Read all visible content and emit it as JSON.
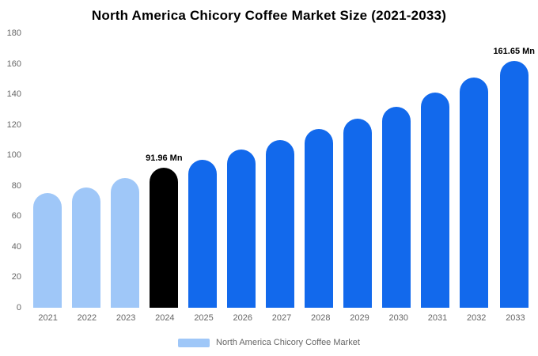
{
  "chart_data": {
    "type": "bar",
    "title": "North America Chicory Coffee Market Size (2021-2033)",
    "categories": [
      "2021",
      "2022",
      "2023",
      "2024",
      "2025",
      "2026",
      "2027",
      "2028",
      "2029",
      "2030",
      "2031",
      "2032",
      "2033"
    ],
    "values": [
      75,
      79,
      85,
      91.96,
      97,
      103.5,
      110,
      117,
      124,
      132,
      141,
      151,
      161.65
    ],
    "unit": "Mn",
    "ylim": [
      0,
      180
    ],
    "ytick_step": 20,
    "grid": false,
    "legend_position": "bottom",
    "legend_label": "North America Chicory Coffee Market",
    "legend_swatch_color": "#9FC7F8",
    "bar_colors": [
      "#9FC7F8",
      "#9FC7F8",
      "#9FC7F8",
      "#000000",
      "#1269EC",
      "#1269EC",
      "#1269EC",
      "#1269EC",
      "#1269EC",
      "#1269EC",
      "#1269EC",
      "#1269EC",
      "#1269EC"
    ],
    "annotations": [
      {
        "index": 3,
        "text": "91.96 Mn"
      },
      {
        "index": 12,
        "text": "161.65 Mn"
      }
    ]
  }
}
